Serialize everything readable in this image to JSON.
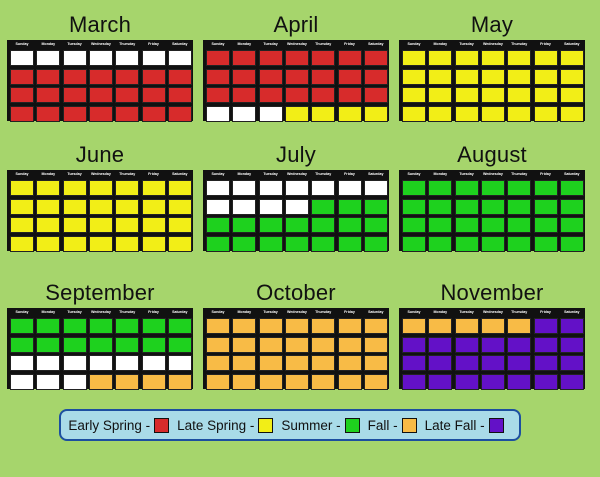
{
  "days": [
    "Sunday",
    "Monday",
    "Tuesday",
    "Wednesday",
    "Thursday",
    "Friday",
    "Saturday"
  ],
  "colors": {
    "W": "#ffffff",
    "R": "#d72b2b",
    "Y": "#f2ee17",
    "G": "#1ed11e",
    "O": "#f8bb46",
    "P": "#6311c7"
  },
  "months": [
    {
      "name": "March",
      "rows": [
        "WWWWWWW",
        "RRRRRRR",
        "RRRRRRR",
        "RRRRRRR"
      ]
    },
    {
      "name": "April",
      "rows": [
        "RRRRRRR",
        "RRRRRRR",
        "RRRRRRR",
        "WWWYYYY"
      ]
    },
    {
      "name": "May",
      "rows": [
        "YYYYYYY",
        "YYYYYYY",
        "YYYYYYY",
        "YYYYYYY"
      ]
    },
    {
      "name": "June",
      "rows": [
        "YYYYYYY",
        "YYYYYYY",
        "YYYYYYY",
        "YYYYYYY"
      ]
    },
    {
      "name": "July",
      "rows": [
        "WWWWWWW",
        "WWWWGGG",
        "GGGGGGG",
        "GGGGGGG"
      ]
    },
    {
      "name": "August",
      "rows": [
        "GGGGGGG",
        "GGGGGGG",
        "GGGGGGG",
        "GGGGGGG"
      ]
    },
    {
      "name": "September",
      "rows": [
        "GGGGGGG",
        "GGGGGGG",
        "WWWWWWW",
        "WWWOOOO"
      ]
    },
    {
      "name": "October",
      "rows": [
        "OOOOOOO",
        "OOOOOOO",
        "OOOOOOO",
        "OOOOOOO"
      ]
    },
    {
      "name": "November",
      "rows": [
        "OOOOOPP",
        "PPPPPPP",
        "PPPPPPP",
        "PPPPPPP"
      ]
    }
  ],
  "legend": [
    {
      "label": "Early Spring -",
      "color": "#d72b2b"
    },
    {
      "label": "Late Spring -",
      "color": "#f2ee17"
    },
    {
      "label": "Summer -",
      "color": "#1ed11e"
    },
    {
      "label": "Fall -",
      "color": "#f8bb46"
    },
    {
      "label": "Late Fall -",
      "color": "#6311c7"
    }
  ]
}
